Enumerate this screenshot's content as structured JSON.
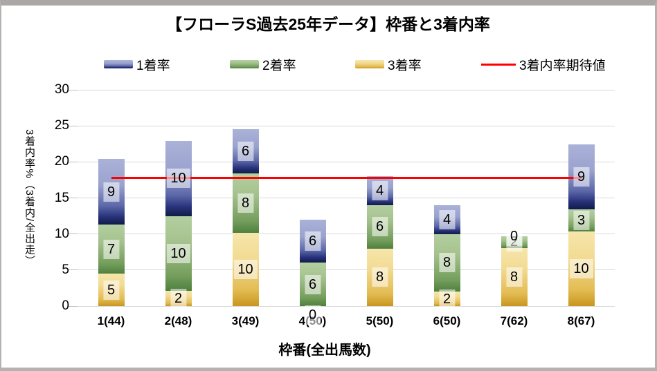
{
  "title": "【フローラS過去25年データ】枠番と3着内率",
  "legend": {
    "items": [
      {
        "label": "1着率",
        "type": "swatch"
      },
      {
        "label": "2着率",
        "type": "swatch"
      },
      {
        "label": "3着率",
        "type": "swatch"
      },
      {
        "label": "3着内率期待値",
        "type": "line",
        "color": "#ff0000"
      }
    ]
  },
  "y_axis": {
    "title": "3着内率%（3着内/全出走）",
    "ticks": [
      0,
      5,
      10,
      15,
      20,
      25,
      30
    ],
    "max": 30
  },
  "x_axis": {
    "title": "枠番(全出馬数)"
  },
  "chart_data": {
    "type": "bar",
    "stacked": true,
    "title": "【フローラS過去25年データ】枠番と3着内率",
    "xlabel": "枠番(全出馬数)",
    "ylabel": "3着内率%（3着内/全出走）",
    "ylim": [
      0,
      30
    ],
    "grid": true,
    "legend_position": "top",
    "categories": [
      "1(44)",
      "2(48)",
      "3(49)",
      "4(50)",
      "5(50)",
      "6(50)",
      "7(62)",
      "8(67)"
    ],
    "series": [
      {
        "name": "3着率",
        "values": [
          4.5,
          2.1,
          10.2,
          0,
          8.0,
          2.0,
          8.1,
          10.4
        ],
        "labels": [
          "5",
          "2",
          "10",
          "0",
          "8",
          "2",
          "8",
          "10"
        ],
        "gradient": [
          "#f6e6ab 0%",
          "#f2db93 35%",
          "#e3bc53 78%",
          "#c9961f 100%"
        ]
      },
      {
        "name": "2着率",
        "values": [
          6.8,
          10.4,
          8.2,
          6.0,
          6.0,
          8.0,
          1.6,
          3.0
        ],
        "labels": [
          "7",
          "10",
          "8",
          "6",
          "6",
          "8",
          "2",
          "3"
        ],
        "gradient": [
          "#b4cfa0 0%",
          "#a5c28e 35%",
          "#749e5c 80%",
          "#4e7f3e 100%"
        ]
      },
      {
        "name": "1着率",
        "values": [
          9.1,
          10.4,
          6.1,
          6.0,
          4.0,
          4.0,
          0,
          9.0
        ],
        "labels": [
          "9",
          "10",
          "6",
          "6",
          "4",
          "4",
          "0",
          "9"
        ],
        "gradient": [
          "#abb2d9 0%",
          "#9aa3ce 40%",
          "#5b67a8 72%",
          "#27327a 88%",
          "#111b47 100%"
        ]
      }
    ],
    "expected_line": {
      "name": "3着内率期待値",
      "value": 17.8,
      "color": "#ff0000"
    }
  }
}
